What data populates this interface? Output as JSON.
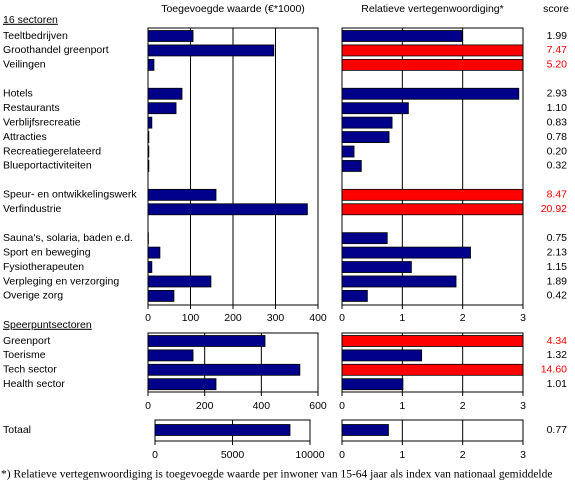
{
  "chart_data": [
    {
      "type": "bar",
      "title": "Toegevoegde waarde (€*1000)",
      "group": "16 sectoren",
      "categories": [
        "Teeltbedrijven",
        "Groothandel greenport",
        "Veilingen",
        null,
        "Hotels",
        "Restaurants",
        "Verblijfsrecreatie",
        "Attracties",
        "Recreatiegerelateerd",
        "Blueportactiviteiten",
        null,
        "Speur- en ontwikkelingswerk",
        "Verfindustrie",
        null,
        "Sauna's, solaria, baden e.d.",
        "Sport en beweging",
        "Fysiotherapeuten",
        "Verpleging en verzorging",
        "Overige zorg"
      ],
      "values": [
        106,
        296,
        14,
        null,
        80,
        66,
        9,
        2,
        2,
        2,
        null,
        160,
        375,
        null,
        1,
        28,
        9,
        148,
        61
      ],
      "color": "#00008b",
      "xlim": [
        0,
        400
      ],
      "xticks": [
        0,
        100,
        200,
        300,
        400
      ],
      "grid": true
    },
    {
      "type": "bar",
      "title": "Relatieve vertegenwoordiging*",
      "score_header": "score",
      "values": [
        1.99,
        7.47,
        5.2,
        null,
        2.93,
        1.1,
        0.83,
        0.78,
        0.2,
        0.32,
        null,
        8.47,
        20.92,
        null,
        0.75,
        2.13,
        1.15,
        1.89,
        0.42
      ],
      "value_labels": [
        "1.99",
        "7.47",
        "5.20",
        null,
        "2.93",
        "1.10",
        "0.83",
        "0.78",
        "0.20",
        "0.32",
        null,
        "8.47",
        "20.92",
        null,
        "0.75",
        "2.13",
        "1.15",
        "1.89",
        "0.42"
      ],
      "colors": [
        "#00008b",
        "#ff0000",
        "#ff0000",
        null,
        "#00008b",
        "#00008b",
        "#00008b",
        "#00008b",
        "#00008b",
        "#00008b",
        null,
        "#ff0000",
        "#ff0000",
        null,
        "#00008b",
        "#00008b",
        "#00008b",
        "#00008b",
        "#00008b"
      ],
      "xlim": [
        0,
        3
      ],
      "xticks": [
        0,
        1,
        2,
        3
      ],
      "grid": true
    },
    {
      "type": "bar",
      "group": "Speerpuntsectoren",
      "categories": [
        "Greenport",
        "Toerisme",
        "Tech sector",
        "Health sector"
      ],
      "values": [
        413,
        159,
        536,
        240
      ],
      "color": "#00008b",
      "xlim": [
        0,
        600
      ],
      "xticks": [
        0,
        200,
        400,
        600
      ],
      "grid": true
    },
    {
      "type": "bar",
      "values": [
        4.34,
        1.32,
        14.6,
        1.01
      ],
      "value_labels": [
        "4.34",
        "1.32",
        "14.60",
        "1.01"
      ],
      "colors": [
        "#ff0000",
        "#00008b",
        "#ff0000",
        "#00008b"
      ],
      "xlim": [
        0,
        3
      ],
      "xticks": [
        0,
        1,
        2,
        3
      ],
      "grid": true
    },
    {
      "type": "bar",
      "categories": [
        "Totaal"
      ],
      "values": [
        8710
      ],
      "color": "#00008b",
      "xlim": [
        0,
        10000
      ],
      "xticks": [
        0,
        5000,
        10000
      ],
      "grid": true
    },
    {
      "type": "bar",
      "values": [
        0.77
      ],
      "value_labels": [
        "0.77"
      ],
      "colors": [
        "#00008b"
      ],
      "xlim": [
        0,
        3
      ],
      "xticks": [
        0,
        1,
        2,
        3
      ],
      "grid": true
    }
  ],
  "footnote": "*) Relatieve vertegenwoordiging is toegevoegde waarde per inwoner van 15-64 jaar als index van nationaal gemiddelde"
}
